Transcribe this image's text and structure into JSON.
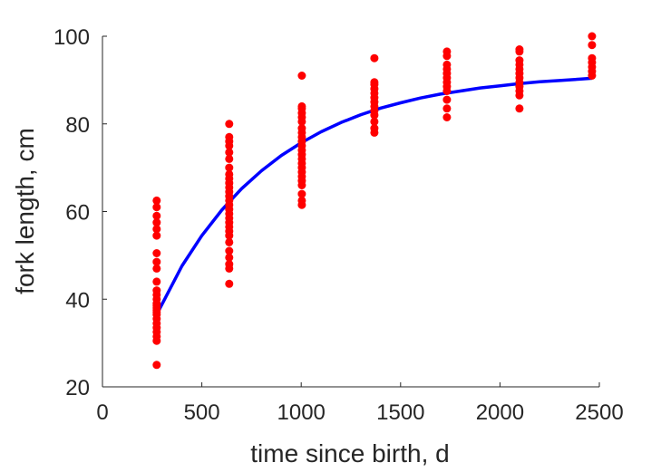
{
  "chart_data": {
    "type": "scatter",
    "xlabel": "time since birth, d",
    "ylabel": "fork length, cm",
    "xlim": [
      0,
      2500
    ],
    "ylim": [
      20,
      100
    ],
    "xticks": [
      "0",
      "500",
      "1000",
      "1500",
      "2000",
      "2500"
    ],
    "yticks": [
      "20",
      "40",
      "60",
      "80",
      "100"
    ],
    "grid": false,
    "box": false,
    "colors": {
      "points": "#ff0000",
      "fit": "#0000ff",
      "axis": "#262626"
    },
    "series": [
      {
        "type": "scatter",
        "points": [
          [
            273,
            25
          ],
          [
            273,
            30.5
          ],
          [
            273,
            31.5
          ],
          [
            273,
            32.5
          ],
          [
            273,
            33.5
          ],
          [
            273,
            34.5
          ],
          [
            273,
            35.5
          ],
          [
            273,
            36.5
          ],
          [
            273,
            37
          ],
          [
            273,
            37.5
          ],
          [
            273,
            38
          ],
          [
            273,
            38.5
          ],
          [
            273,
            39
          ],
          [
            273,
            40
          ],
          [
            273,
            41
          ],
          [
            273,
            42
          ],
          [
            273,
            44
          ],
          [
            273,
            47
          ],
          [
            273,
            48.5
          ],
          [
            273,
            50.5
          ],
          [
            273,
            54.5
          ],
          [
            273,
            56
          ],
          [
            273,
            57.5
          ],
          [
            273,
            59
          ],
          [
            273,
            61
          ],
          [
            273,
            62.5
          ],
          [
            638,
            43.5
          ],
          [
            638,
            47
          ],
          [
            638,
            48
          ],
          [
            638,
            49.5
          ],
          [
            638,
            51
          ],
          [
            638,
            53
          ],
          [
            638,
            54.5
          ],
          [
            638,
            55.5
          ],
          [
            638,
            56.5
          ],
          [
            638,
            57.5
          ],
          [
            638,
            58.5
          ],
          [
            638,
            59.5
          ],
          [
            638,
            60.5
          ],
          [
            638,
            61.5
          ],
          [
            638,
            62.5
          ],
          [
            638,
            63.5
          ],
          [
            638,
            64.5
          ],
          [
            638,
            65.5
          ],
          [
            638,
            66.5
          ],
          [
            638,
            67.5
          ],
          [
            638,
            68.5
          ],
          [
            638,
            70
          ],
          [
            638,
            72
          ],
          [
            638,
            73.5
          ],
          [
            638,
            75
          ],
          [
            638,
            76
          ],
          [
            638,
            77
          ],
          [
            638,
            80
          ],
          [
            1003,
            61.5
          ],
          [
            1003,
            62.5
          ],
          [
            1003,
            64
          ],
          [
            1003,
            66
          ],
          [
            1003,
            67
          ],
          [
            1003,
            68
          ],
          [
            1003,
            69
          ],
          [
            1003,
            70
          ],
          [
            1003,
            71
          ],
          [
            1003,
            72
          ],
          [
            1003,
            73
          ],
          [
            1003,
            74
          ],
          [
            1003,
            75
          ],
          [
            1003,
            76
          ],
          [
            1003,
            77
          ],
          [
            1003,
            78
          ],
          [
            1003,
            79
          ],
          [
            1003,
            80.5
          ],
          [
            1003,
            81.5
          ],
          [
            1003,
            82.5
          ],
          [
            1003,
            83.5
          ],
          [
            1003,
            84
          ],
          [
            1003,
            91
          ],
          [
            1368,
            78
          ],
          [
            1368,
            79
          ],
          [
            1368,
            80.5
          ],
          [
            1368,
            82
          ],
          [
            1368,
            83
          ],
          [
            1368,
            84
          ],
          [
            1368,
            85
          ],
          [
            1368,
            86
          ],
          [
            1368,
            87
          ],
          [
            1368,
            88
          ],
          [
            1368,
            89
          ],
          [
            1368,
            89.5
          ],
          [
            1368,
            95
          ],
          [
            1733,
            81.5
          ],
          [
            1733,
            83.5
          ],
          [
            1733,
            85.5
          ],
          [
            1733,
            87.5
          ],
          [
            1733,
            88.5
          ],
          [
            1733,
            89.5
          ],
          [
            1733,
            90.5
          ],
          [
            1733,
            91.5
          ],
          [
            1733,
            92.5
          ],
          [
            1733,
            93.5
          ],
          [
            1733,
            95.5
          ],
          [
            1733,
            96.5
          ],
          [
            2098,
            83.5
          ],
          [
            2098,
            86.5
          ],
          [
            2098,
            87.5
          ],
          [
            2098,
            88.5
          ],
          [
            2098,
            89.5
          ],
          [
            2098,
            90.5
          ],
          [
            2098,
            91.5
          ],
          [
            2098,
            92.5
          ],
          [
            2098,
            93.5
          ],
          [
            2098,
            94.5
          ],
          [
            2098,
            96.5
          ],
          [
            2098,
            97
          ],
          [
            2463,
            91
          ],
          [
            2463,
            92
          ],
          [
            2463,
            93
          ],
          [
            2463,
            94
          ],
          [
            2463,
            95
          ],
          [
            2463,
            98
          ],
          [
            2463,
            100
          ]
        ]
      },
      {
        "type": "line",
        "x": [
          273,
          400,
          500,
          600,
          700,
          800,
          900,
          1000,
          1100,
          1200,
          1300,
          1400,
          1500,
          1600,
          1700,
          1800,
          1900,
          2000,
          2100,
          2200,
          2300,
          2400,
          2463
        ],
        "y": [
          36.5,
          47.6,
          54.5,
          60.3,
          65.2,
          69.3,
          72.8,
          75.7,
          78.2,
          80.3,
          82.1,
          83.6,
          84.8,
          85.9,
          86.8,
          87.5,
          88.2,
          88.7,
          89.2,
          89.6,
          89.9,
          90.2,
          90.4
        ]
      }
    ]
  }
}
